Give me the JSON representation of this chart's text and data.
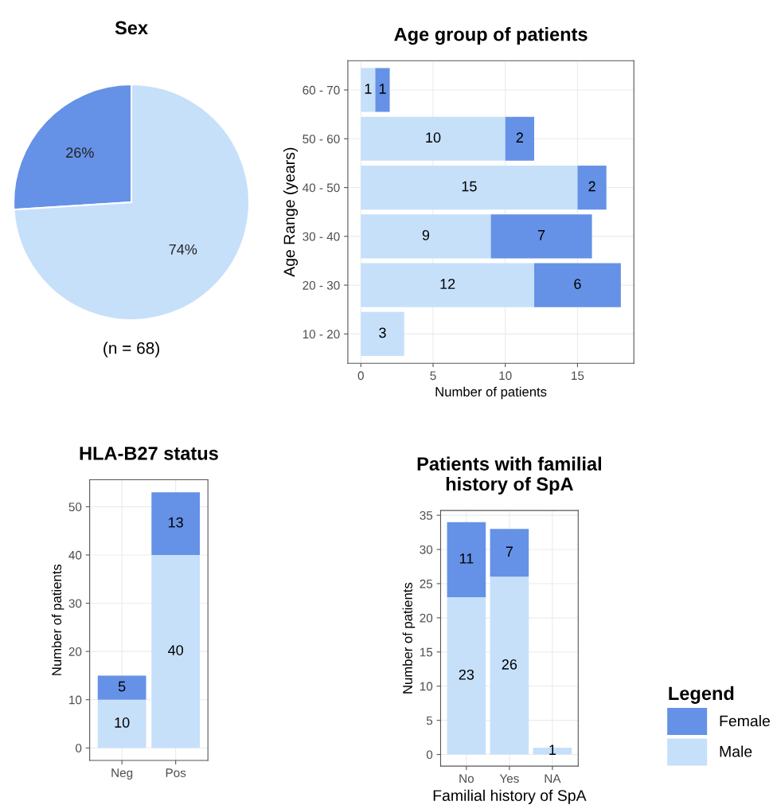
{
  "chart_data": [
    {
      "type": "pie",
      "title": "Sex",
      "categories": [
        null,
        null
      ],
      "values": [
        26,
        74
      ],
      "colors": [
        "#6592e6",
        "#c6e0fa"
      ],
      "value_labels": [
        "26%",
        "74%"
      ],
      "annotations": [
        "(n = 68)"
      ]
    },
    {
      "type": "bar",
      "title": "Age group of patients",
      "orientation": "horizontal",
      "stacked": true,
      "xlabel": "Number of patients",
      "ylabel": "Age Range (years)",
      "categories": [
        "60 - 70",
        "50 - 60",
        "40 - 50",
        "30 - 40",
        "20 - 30",
        "10 - 20"
      ],
      "series": [
        {
          "color": "#c6e0fa",
          "values": [
            1,
            10,
            15,
            9,
            12,
            3
          ]
        },
        {
          "color": "#6592e6",
          "values": [
            1,
            2,
            2,
            7,
            6,
            null
          ]
        }
      ],
      "xlim": [
        -0.9,
        18.9
      ],
      "xticks": [
        0,
        5,
        10,
        15
      ],
      "grid": true,
      "data_labels": true
    },
    {
      "type": "bar",
      "title": "HLA-B27 status",
      "stacked": true,
      "ylabel": "Number of patients",
      "categories": [
        "Neg",
        "Pos"
      ],
      "series": [
        {
          "color": "#c6e0fa",
          "values": [
            10,
            40
          ]
        },
        {
          "color": "#6592e6",
          "values": [
            5,
            13
          ]
        }
      ],
      "ylim": [
        -2.6,
        55.6
      ],
      "yticks": [
        0,
        10,
        20,
        30,
        40,
        50
      ],
      "grid": true,
      "data_labels": true
    },
    {
      "type": "bar",
      "title": "Patients with familial history of SpA",
      "stacked": true,
      "xlabel": "Familial history of SpA",
      "ylabel": "Number of patients",
      "categories": [
        "No",
        "Yes",
        "NA"
      ],
      "series": [
        {
          "name": "Male",
          "color": "#c6e0fa",
          "values": [
            23,
            26,
            1
          ]
        },
        {
          "name": "Female",
          "color": "#6592e6",
          "values": [
            11,
            7,
            null
          ]
        }
      ],
      "ylim": [
        -1.7,
        35.7
      ],
      "yticks": [
        0,
        5,
        10,
        15,
        20,
        25,
        30,
        35
      ],
      "grid": true,
      "data_labels": true,
      "legend": "right",
      "legend_title": "Legend"
    }
  ]
}
